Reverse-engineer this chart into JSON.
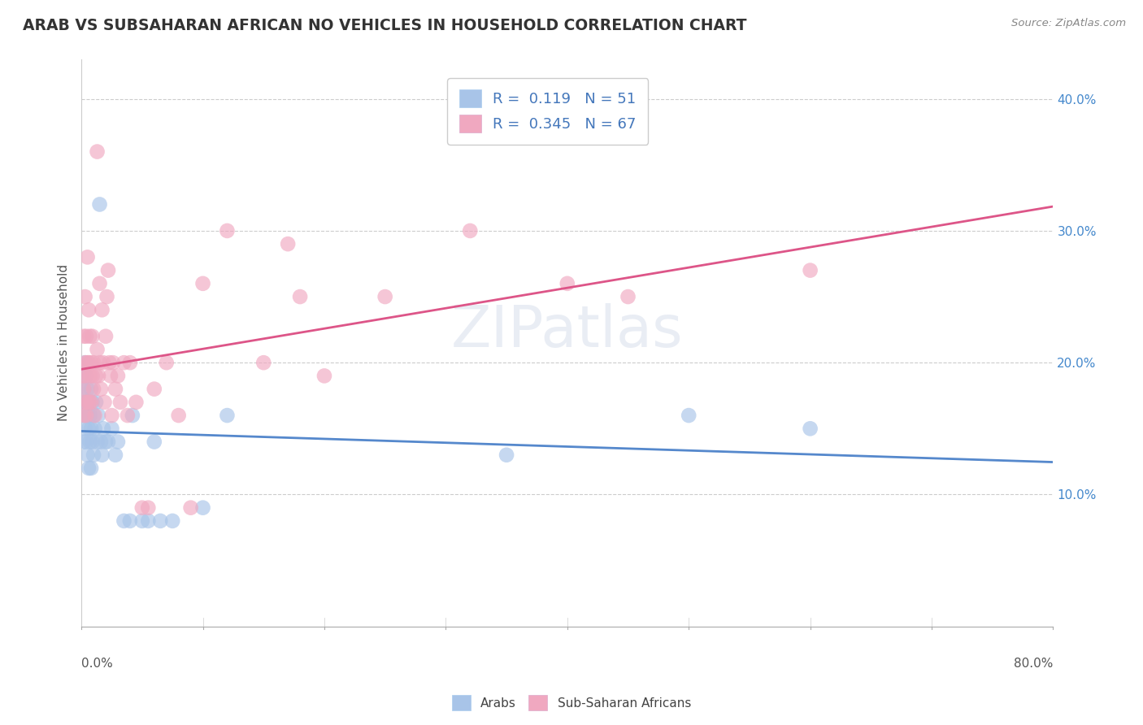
{
  "title": "ARAB VS SUBSAHARAN AFRICAN NO VEHICLES IN HOUSEHOLD CORRELATION CHART",
  "source": "Source: ZipAtlas.com",
  "ylabel": "No Vehicles in Household",
  "legend_arab_R": "0.119",
  "legend_arab_N": "51",
  "legend_subsaharan_R": "0.345",
  "legend_subsaharan_N": "67",
  "arab_color": "#a8c4e8",
  "subsaharan_color": "#f0a8c0",
  "trendline_arab_color": "#5588cc",
  "trendline_subsaharan_color": "#dd5588",
  "arab_scatter": [
    [
      0.001,
      0.19
    ],
    [
      0.002,
      0.18
    ],
    [
      0.002,
      0.16
    ],
    [
      0.002,
      0.14
    ],
    [
      0.003,
      0.2
    ],
    [
      0.003,
      0.17
    ],
    [
      0.003,
      0.15
    ],
    [
      0.004,
      0.19
    ],
    [
      0.004,
      0.17
    ],
    [
      0.004,
      0.14
    ],
    [
      0.005,
      0.18
    ],
    [
      0.005,
      0.16
    ],
    [
      0.005,
      0.13
    ],
    [
      0.006,
      0.17
    ],
    [
      0.006,
      0.15
    ],
    [
      0.006,
      0.12
    ],
    [
      0.007,
      0.16
    ],
    [
      0.007,
      0.14
    ],
    [
      0.008,
      0.18
    ],
    [
      0.008,
      0.15
    ],
    [
      0.008,
      0.12
    ],
    [
      0.009,
      0.17
    ],
    [
      0.009,
      0.14
    ],
    [
      0.01,
      0.16
    ],
    [
      0.01,
      0.13
    ],
    [
      0.011,
      0.15
    ],
    [
      0.012,
      0.17
    ],
    [
      0.013,
      0.14
    ],
    [
      0.014,
      0.16
    ],
    [
      0.015,
      0.32
    ],
    [
      0.016,
      0.14
    ],
    [
      0.017,
      0.13
    ],
    [
      0.018,
      0.15
    ],
    [
      0.02,
      0.14
    ],
    [
      0.022,
      0.14
    ],
    [
      0.025,
      0.15
    ],
    [
      0.028,
      0.13
    ],
    [
      0.03,
      0.14
    ],
    [
      0.035,
      0.08
    ],
    [
      0.04,
      0.08
    ],
    [
      0.042,
      0.16
    ],
    [
      0.05,
      0.08
    ],
    [
      0.055,
      0.08
    ],
    [
      0.06,
      0.14
    ],
    [
      0.065,
      0.08
    ],
    [
      0.075,
      0.08
    ],
    [
      0.1,
      0.09
    ],
    [
      0.12,
      0.16
    ],
    [
      0.35,
      0.13
    ],
    [
      0.5,
      0.16
    ],
    [
      0.6,
      0.15
    ]
  ],
  "subsaharan_scatter": [
    [
      0.001,
      0.19
    ],
    [
      0.002,
      0.22
    ],
    [
      0.002,
      0.18
    ],
    [
      0.002,
      0.16
    ],
    [
      0.003,
      0.25
    ],
    [
      0.003,
      0.2
    ],
    [
      0.003,
      0.17
    ],
    [
      0.004,
      0.22
    ],
    [
      0.004,
      0.19
    ],
    [
      0.004,
      0.16
    ],
    [
      0.005,
      0.28
    ],
    [
      0.005,
      0.2
    ],
    [
      0.005,
      0.17
    ],
    [
      0.006,
      0.24
    ],
    [
      0.006,
      0.2
    ],
    [
      0.006,
      0.17
    ],
    [
      0.007,
      0.22
    ],
    [
      0.007,
      0.19
    ],
    [
      0.007,
      0.17
    ],
    [
      0.008,
      0.2
    ],
    [
      0.008,
      0.17
    ],
    [
      0.009,
      0.22
    ],
    [
      0.009,
      0.19
    ],
    [
      0.01,
      0.2
    ],
    [
      0.01,
      0.18
    ],
    [
      0.011,
      0.16
    ],
    [
      0.012,
      0.19
    ],
    [
      0.013,
      0.36
    ],
    [
      0.013,
      0.21
    ],
    [
      0.014,
      0.19
    ],
    [
      0.015,
      0.26
    ],
    [
      0.015,
      0.2
    ],
    [
      0.016,
      0.18
    ],
    [
      0.017,
      0.24
    ],
    [
      0.018,
      0.2
    ],
    [
      0.019,
      0.17
    ],
    [
      0.02,
      0.22
    ],
    [
      0.021,
      0.25
    ],
    [
      0.022,
      0.27
    ],
    [
      0.023,
      0.2
    ],
    [
      0.024,
      0.19
    ],
    [
      0.025,
      0.16
    ],
    [
      0.026,
      0.2
    ],
    [
      0.028,
      0.18
    ],
    [
      0.03,
      0.19
    ],
    [
      0.032,
      0.17
    ],
    [
      0.035,
      0.2
    ],
    [
      0.038,
      0.16
    ],
    [
      0.04,
      0.2
    ],
    [
      0.045,
      0.17
    ],
    [
      0.05,
      0.09
    ],
    [
      0.055,
      0.09
    ],
    [
      0.06,
      0.18
    ],
    [
      0.07,
      0.2
    ],
    [
      0.08,
      0.16
    ],
    [
      0.09,
      0.09
    ],
    [
      0.1,
      0.26
    ],
    [
      0.12,
      0.3
    ],
    [
      0.15,
      0.2
    ],
    [
      0.17,
      0.29
    ],
    [
      0.18,
      0.25
    ],
    [
      0.2,
      0.19
    ],
    [
      0.25,
      0.25
    ],
    [
      0.32,
      0.3
    ],
    [
      0.4,
      0.26
    ],
    [
      0.45,
      0.25
    ],
    [
      0.6,
      0.27
    ]
  ],
  "xlim": [
    0.0,
    0.8
  ],
  "ylim": [
    0.0,
    0.43
  ],
  "ytick_vals": [
    0.1,
    0.2,
    0.3,
    0.4
  ],
  "ytick_labels": [
    "10.0%",
    "20.0%",
    "30.0%",
    "40.0%"
  ],
  "background_color": "#ffffff",
  "grid_color": "#cccccc",
  "tick_color": "#4488cc",
  "title_color": "#333333",
  "source_color": "#888888",
  "watermark_text": "ZIPatlas"
}
